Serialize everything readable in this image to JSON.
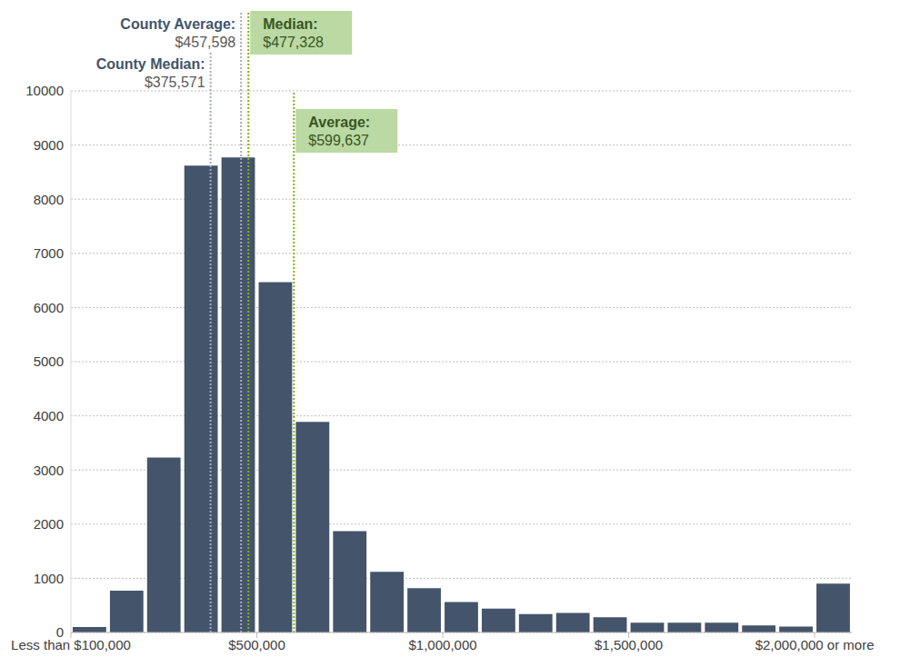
{
  "chart_data": {
    "type": "histogram",
    "bins": [
      0,
      100000,
      200000,
      300000,
      400000,
      500000,
      600000,
      700000,
      800000,
      900000,
      1000000,
      1100000,
      1200000,
      1300000,
      1400000,
      1500000,
      1600000,
      1700000,
      1800000,
      1900000,
      2000000,
      2100000
    ],
    "values": [
      100,
      770,
      3230,
      8620,
      8770,
      6470,
      3890,
      1870,
      1120,
      820,
      560,
      440,
      340,
      360,
      280,
      180,
      180,
      180,
      130,
      110,
      900
    ],
    "color": "#44546a",
    "xlim": [
      0,
      2100000
    ],
    "xticks": [
      {
        "value": 0,
        "label": "Less than $100,000"
      },
      {
        "value": 500000,
        "label": "$500,000"
      },
      {
        "value": 1000000,
        "label": "$1,000,000"
      },
      {
        "value": 1500000,
        "label": "$1,500,000"
      },
      {
        "value": 2000000,
        "label": "$2,000,000 or more"
      }
    ],
    "ylim": [
      0,
      10000
    ],
    "yticks": [
      0,
      1000,
      2000,
      3000,
      4000,
      5000,
      6000,
      7000,
      8000,
      9000,
      10000
    ],
    "grid": true,
    "annotations": [
      {
        "text": "County Median:",
        "label": "$375,571",
        "x": 375571,
        "color": "#a6adb8"
      },
      {
        "text": "County Average:",
        "label": "$457,598",
        "x": 457598,
        "color": "#a6adb8"
      },
      {
        "text": "Median:",
        "label": "$477,328",
        "x": 477328,
        "color": "#7cb518",
        "marker": "box"
      },
      {
        "text": "Average:",
        "label": "$599,637",
        "x": 599637,
        "color": "#7cb518",
        "marker": "box"
      }
    ]
  }
}
